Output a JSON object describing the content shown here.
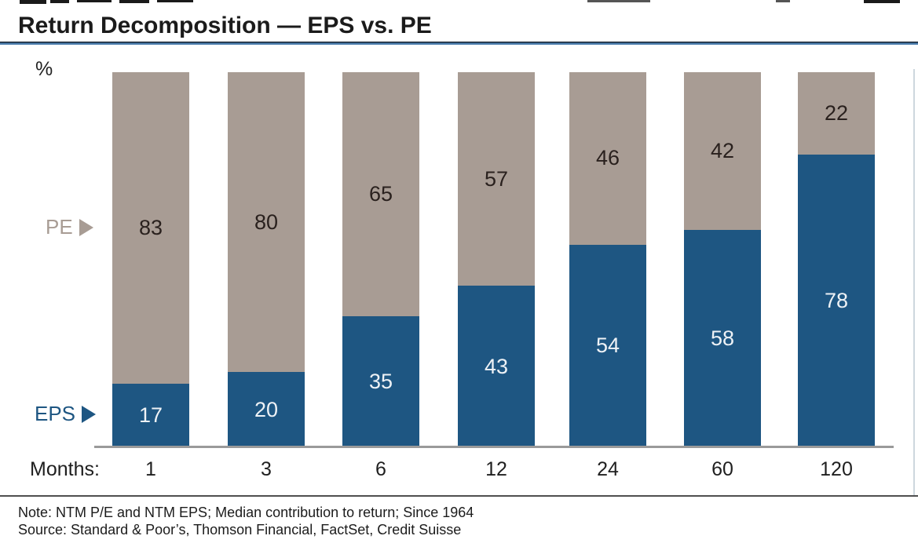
{
  "header": {
    "title": "Return Decomposition — EPS vs. PE"
  },
  "chart_data": {
    "type": "bar",
    "stacked": true,
    "unit_label": "%",
    "x_axis_label": "Months:",
    "categories": [
      "1",
      "3",
      "6",
      "12",
      "24",
      "60",
      "120"
    ],
    "series": [
      {
        "name": "EPS",
        "color": "#1e5682",
        "label_color": "#eef2f6",
        "values": [
          17,
          20,
          35,
          43,
          54,
          58,
          78
        ]
      },
      {
        "name": "PE",
        "color": "#a89c94",
        "label_color": "#2a211e",
        "values": [
          83,
          80,
          65,
          57,
          46,
          42,
          22
        ]
      }
    ],
    "ylim": [
      0,
      100
    ],
    "grid": false,
    "legend_position": "left-markers-pointing-at-series"
  },
  "footer": {
    "note": "Note: NTM P/E and NTM EPS; Median contribution to return; Since 1964",
    "source": "Source: Standard & Poor’s, Thomson Financial, FactSet, Credit Suisse"
  },
  "colors": {
    "eps_bar": "#1e5682",
    "pe_bar": "#a89c94",
    "title_underline": "#4c7eae",
    "axis_line": "#9a9a9a",
    "separator_line": "#4f4f4f"
  }
}
